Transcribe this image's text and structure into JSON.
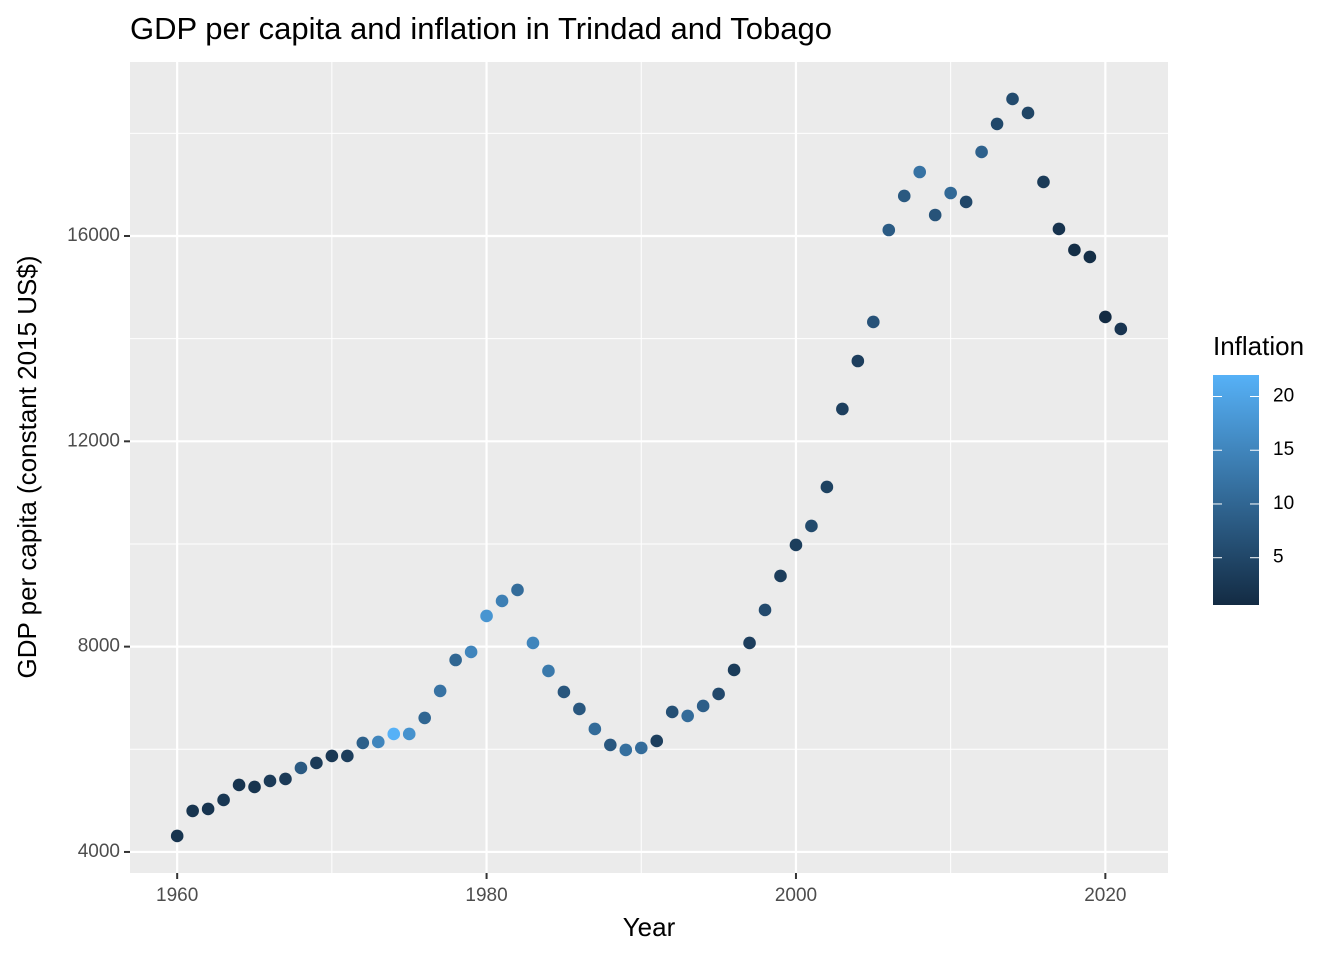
{
  "chart_data": {
    "type": "scatter",
    "title": "GDP per capita and inflation in Trindad and Tobago",
    "xlabel": "Year",
    "ylabel": "GDP per capita (constant 2015 US$)",
    "x": [
      1960,
      1961,
      1962,
      1963,
      1964,
      1965,
      1966,
      1967,
      1968,
      1969,
      1970,
      1971,
      1972,
      1973,
      1974,
      1975,
      1976,
      1977,
      1978,
      1979,
      1980,
      1981,
      1982,
      1983,
      1984,
      1985,
      1986,
      1987,
      1988,
      1989,
      1990,
      1991,
      1992,
      1993,
      1994,
      1995,
      1996,
      1997,
      1998,
      1999,
      2000,
      2001,
      2002,
      2003,
      2004,
      2005,
      2006,
      2007,
      2008,
      2009,
      2010,
      2011,
      2012,
      2013,
      2014,
      2015,
      2016,
      2017,
      2018,
      2019,
      2020,
      2021
    ],
    "values": [
      4312,
      4800,
      4838,
      5013,
      5305,
      5266,
      5383,
      5422,
      5636,
      5734,
      5870,
      5870,
      6124,
      6143,
      6299,
      6299,
      6611,
      7137,
      7740,
      7896,
      8598,
      8890,
      9104,
      8072,
      7526,
      7117,
      6786,
      6396,
      6085,
      5987,
      6026,
      6162,
      6727,
      6650,
      6844,
      7078,
      7546,
      8072,
      8715,
      9377,
      9981,
      10351,
      11111,
      12630,
      13565,
      14325,
      16117,
      16780,
      17247,
      16409,
      16838,
      16663,
      17637,
      18183,
      18670,
      18397,
      17053,
      16137,
      15728,
      15592,
      14423,
      14189
    ],
    "color_values": [
      2,
      2,
      2,
      2.5,
      2,
      2,
      3,
      3,
      8,
      3,
      2.5,
      3.5,
      9,
      15,
      22,
      17,
      10,
      12,
      10,
      15,
      17.5,
      14,
      11,
      15,
      13,
      7.5,
      7.7,
      10.8,
      7.8,
      11.4,
      11,
      3.8,
      6.5,
      10.8,
      8.8,
      5.3,
      3.3,
      3.7,
      5.6,
      3.4,
      3.6,
      5.5,
      4.2,
      3.8,
      3.7,
      6.9,
      8.3,
      7.9,
      12,
      7,
      10.5,
      5.1,
      9.3,
      5.2,
      5.7,
      4.7,
      3.1,
      1.9,
      1,
      1,
      0.6,
      2.1
    ],
    "color_label": "Inflation",
    "color_range": [
      "#132B43",
      "#56B1F7"
    ],
    "colorlim": [
      0.6,
      22
    ],
    "colorticks": [
      5,
      10,
      15,
      20
    ],
    "xlim": [
      1956.95,
      2024.05
    ],
    "xticks": [
      1960,
      1980,
      2000,
      2020
    ],
    "ylim": [
      3590,
      19390
    ],
    "yticks": [
      4000,
      8000,
      12000,
      16000
    ],
    "grid": true
  }
}
